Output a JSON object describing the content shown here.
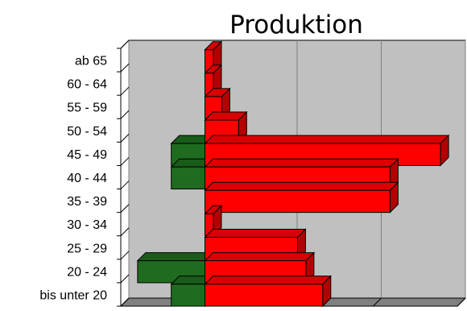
{
  "chart_data": {
    "type": "bar",
    "orientation": "horizontal",
    "layout": "population-pyramid",
    "title": "Produktion",
    "xlabel": "",
    "ylabel": "",
    "categories": [
      "ab 65",
      "60 - 64",
      "55 - 59",
      "50 - 54",
      "45 - 49",
      "40 - 44",
      "35 - 39",
      "30 - 34",
      "25 - 29",
      "20 - 24",
      "bis unter 20"
    ],
    "series": [
      {
        "side": "left",
        "color": "#1f6b1f",
        "values": [
          0,
          0,
          0,
          0,
          4,
          4,
          0,
          0,
          0,
          8,
          4
        ]
      },
      {
        "side": "right",
        "color": "#ff0000",
        "values": [
          1,
          1,
          2,
          4,
          28,
          22,
          22,
          1,
          11,
          12,
          14
        ]
      }
    ],
    "xlim": [
      -10,
      30
    ],
    "grid": true,
    "legend": "none",
    "colors": {
      "plot_wall": "#c0c0c0",
      "floor": "#808080",
      "gridline": "#808080"
    }
  }
}
